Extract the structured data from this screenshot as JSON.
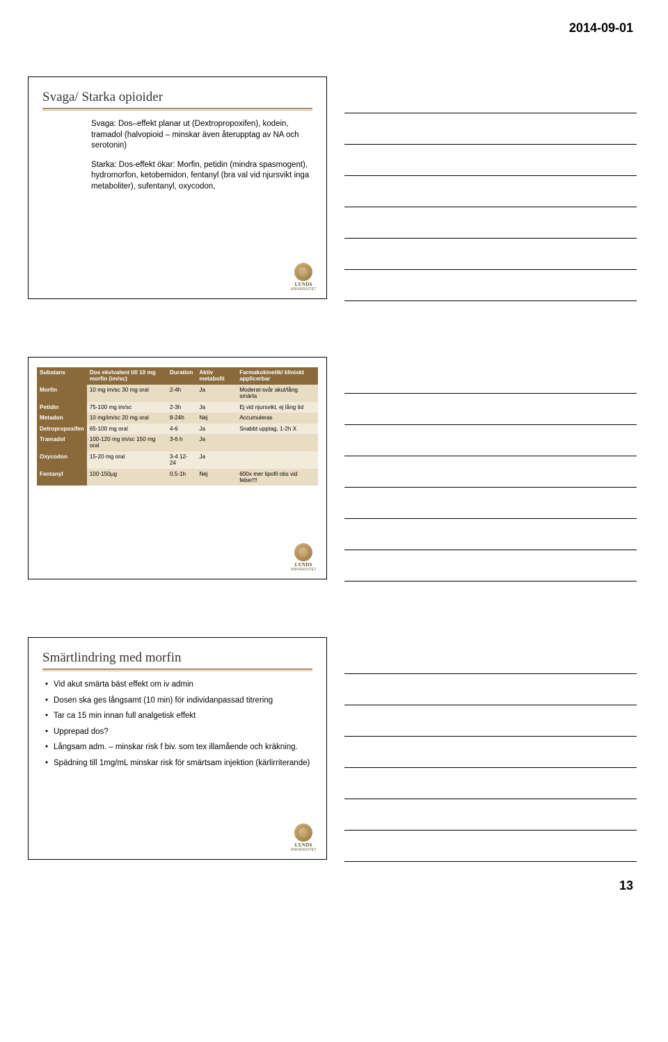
{
  "header_date": "2014-09-01",
  "page_number": "13",
  "logo": {
    "name": "LUNDS",
    "sub": "UNIVERSITET"
  },
  "colors": {
    "accent_rule": "#a58a5a",
    "table_header_bg": "#8a6a3a",
    "table_header_fg": "#ffffff",
    "table_row_alt1": "#e8dcc3",
    "table_row_alt2": "#f2ebdc"
  },
  "slide1": {
    "title": "Svaga/ Starka opioider",
    "para1": "Svaga: Dos–effekt planar ut (Dextropropoxifen), kodein, tramadol (halvopioid – minskar även återupptag av NA och serotonin)",
    "para2": "Starka: Dos-effekt ökar: Morfin, petidin (mindra spasmogent), hydromorfon, ketobemidon, fentanyl (bra val vid njursvikt inga metaboliter), sufentanyl, oxycodon,"
  },
  "slide2": {
    "columns": [
      "Substans",
      "Dos ekvivalent till 10 mg morfin (im/sc)",
      "Duration",
      "Aktiv metabolit",
      "Farmakokinetik/ kliniskt applicerbar"
    ],
    "rows": [
      {
        "name": "Morfin",
        "dose": "10 mg im/sc 30 mg oral",
        "dur": "2-4h",
        "metab": "Ja",
        "pk": "Moderat-svår akut/lång smärta"
      },
      {
        "name": "Petidin",
        "dose": "75-100 mg im/sc",
        "dur": "2-3h",
        "metab": "Ja",
        "pk": "Ej vid njursvikt, ej lång tid"
      },
      {
        "name": "Metadon",
        "dose": "10 mg/im/sc 20 mg oral",
        "dur": "8-24h",
        "metab": "Nej",
        "pk": "Accumuleras"
      },
      {
        "name": "Detropropoxifen",
        "dose": "65-100 mg oral",
        "dur": "4-6",
        "metab": "Ja",
        "pk": "Snabbt upptag, 1-2h X"
      },
      {
        "name": "Tramadol",
        "dose": "100-120 mg im/sc 150 mg oral",
        "dur": "3-6 h",
        "metab": "Ja",
        "pk": ""
      },
      {
        "name": "Oxycodon",
        "dose": "15-20 mg oral",
        "dur": "3-4 12-24",
        "metab": "Ja",
        "pk": ""
      },
      {
        "name": "Fentanyl",
        "dose": "100-150µg",
        "dur": "0.5-1h",
        "metab": "Nej",
        "pk": "600x mer lipofil obs vid feber!!!"
      }
    ]
  },
  "slide3": {
    "title": "Smärtlindring med morfin",
    "bullets": [
      "Vid akut smärta bäst effekt om iv admin",
      "Dosen ska ges långsamt (10 min) för individanpassad titrering",
      "Tar ca 15 min innan full analgetisk effekt",
      "Upprepad dos?",
      "Långsam adm. – minskar risk f biv. som tex illamående och kräkning.",
      "Spädning till 1mg/mL minskar risk för smärtsam injektion (kärlirriterande)"
    ]
  }
}
